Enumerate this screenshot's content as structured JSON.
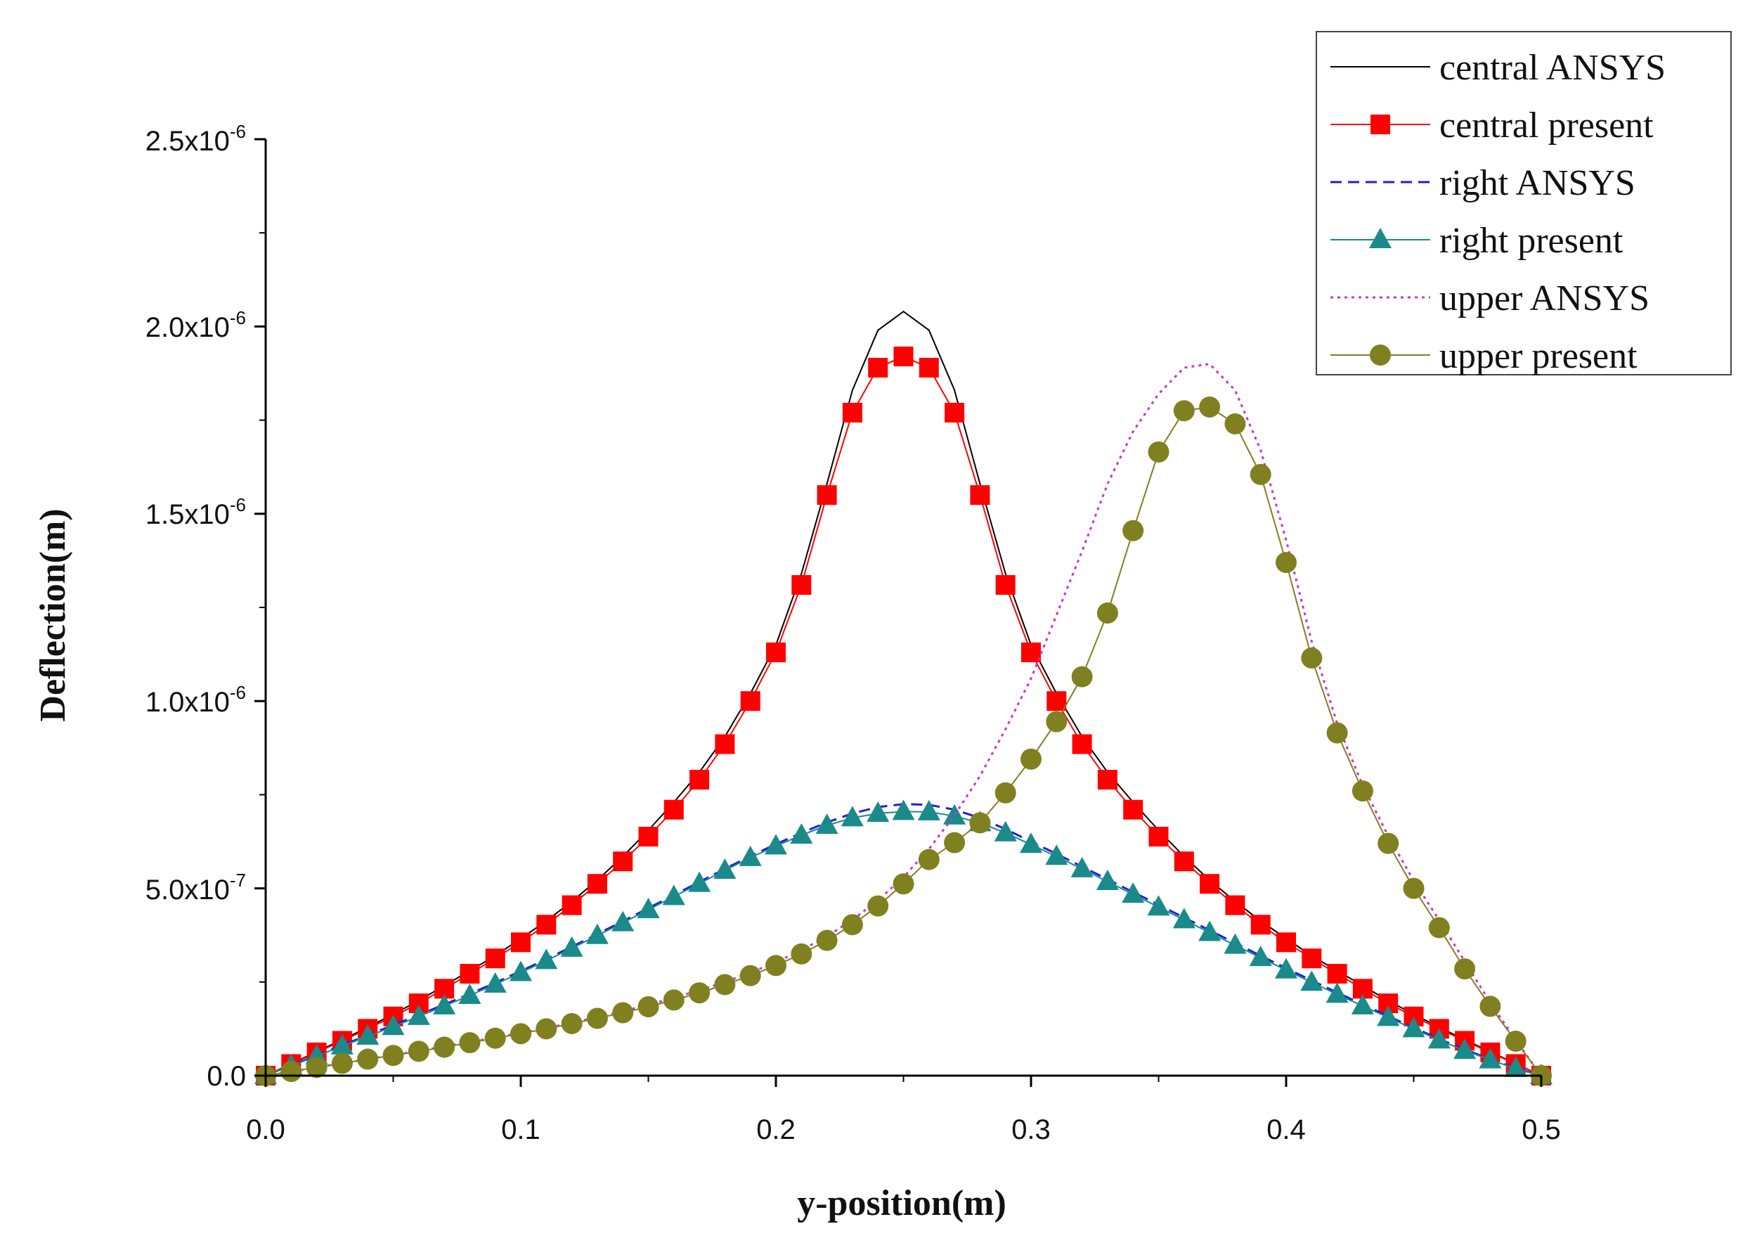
{
  "chart_data": {
    "type": "line",
    "title": "",
    "xlabel": "y-position(m)",
    "ylabel": "Deflection(m)",
    "xlim": [
      0,
      0.5
    ],
    "ylim": [
      0,
      2.5e-06
    ],
    "x_ticks": [
      0.0,
      0.1,
      0.2,
      0.3,
      0.4,
      0.5
    ],
    "x_tick_labels": [
      "0.0",
      "0.1",
      "0.2",
      "0.3",
      "0.4",
      "0.5"
    ],
    "y_ticks": [
      0,
      5e-07,
      1e-06,
      1.5e-06,
      2e-06,
      2.5e-06
    ],
    "y_tick_labels": [
      {
        "mantissa": "0.0",
        "exponent": ""
      },
      {
        "mantissa": "5.0x10",
        "exponent": "-7"
      },
      {
        "mantissa": "1.0x10",
        "exponent": "-6"
      },
      {
        "mantissa": "1.5x10",
        "exponent": "-6"
      },
      {
        "mantissa": "2.0x10",
        "exponent": "-6"
      },
      {
        "mantissa": "2.5x10",
        "exponent": "-6"
      }
    ],
    "grid": false,
    "legend_position": "top-right",
    "x": [
      0,
      0.01,
      0.02,
      0.03,
      0.04,
      0.05,
      0.06,
      0.07,
      0.08,
      0.09,
      0.1,
      0.11,
      0.12,
      0.13,
      0.14,
      0.15,
      0.16,
      0.17,
      0.18,
      0.19,
      0.2,
      0.21,
      0.22,
      0.23,
      0.24,
      0.25,
      0.26,
      0.27,
      0.28,
      0.29,
      0.3,
      0.31,
      0.32,
      0.33,
      0.34,
      0.35,
      0.36,
      0.37,
      0.38,
      0.39,
      0.4,
      0.41,
      0.42,
      0.43,
      0.44,
      0.45,
      0.46,
      0.47,
      0.48,
      0.49,
      0.5
    ],
    "series": [
      {
        "name": "central ANSYS",
        "color": "#000000",
        "style": "solid",
        "marker": "none",
        "values": [
          0,
          3.2e-08,
          6.4e-08,
          9.6e-08,
          1.29e-07,
          1.64e-07,
          2e-07,
          2.4e-07,
          2.8e-07,
          3.2e-07,
          3.66e-07,
          4.13e-07,
          4.65e-07,
          5.22e-07,
          5.85e-07,
          6.55e-07,
          7.3e-07,
          8.1e-07,
          9.05e-07,
          1.02e-06,
          1.15e-06,
          1.34e-06,
          1.58e-06,
          1.83e-06,
          1.99e-06,
          2.04e-06,
          1.99e-06,
          1.83e-06,
          1.58e-06,
          1.34e-06,
          1.15e-06,
          1.02e-06,
          9.05e-07,
          8.1e-07,
          7.3e-07,
          6.55e-07,
          5.85e-07,
          5.22e-07,
          4.65e-07,
          4.13e-07,
          3.66e-07,
          3.2e-07,
          2.8e-07,
          2.4e-07,
          2e-07,
          1.64e-07,
          1.29e-07,
          9.6e-08,
          6.4e-08,
          3.2e-08,
          0
        ]
      },
      {
        "name": "central present",
        "color": "#ff0000",
        "style": "solid",
        "marker": "square",
        "values": [
          0,
          3.1e-08,
          6.2e-08,
          9.3e-08,
          1.25e-07,
          1.58e-07,
          1.93e-07,
          2.32e-07,
          2.72e-07,
          3.13e-07,
          3.56e-07,
          4.03e-07,
          4.55e-07,
          5.12e-07,
          5.72e-07,
          6.38e-07,
          7.1e-07,
          7.9e-07,
          8.85e-07,
          1e-06,
          1.13e-06,
          1.31e-06,
          1.55e-06,
          1.77e-06,
          1.89e-06,
          1.92e-06,
          1.89e-06,
          1.77e-06,
          1.55e-06,
          1.31e-06,
          1.13e-06,
          1e-06,
          8.85e-07,
          7.9e-07,
          7.1e-07,
          6.38e-07,
          5.72e-07,
          5.12e-07,
          4.55e-07,
          4.03e-07,
          3.56e-07,
          3.13e-07,
          2.72e-07,
          2.32e-07,
          1.93e-07,
          1.58e-07,
          1.25e-07,
          9.3e-08,
          6.2e-08,
          3.1e-08,
          0
        ]
      },
      {
        "name": "right ANSYS",
        "color": "#1f1fe0",
        "style": "dashed",
        "marker": "none",
        "values": [
          0,
          2.7e-08,
          5.4e-08,
          8.1e-08,
          1.08e-07,
          1.35e-07,
          1.62e-07,
          1.9e-07,
          2.18e-07,
          2.48e-07,
          2.79e-07,
          3.11e-07,
          3.44e-07,
          3.78e-07,
          4.12e-07,
          4.47e-07,
          4.82e-07,
          5.17e-07,
          5.52e-07,
          5.86e-07,
          6.18e-07,
          6.48e-07,
          6.76e-07,
          7e-07,
          7.17e-07,
          7.25e-07,
          7.23e-07,
          7.1e-07,
          6.88e-07,
          6.58e-07,
          6.25e-07,
          5.92e-07,
          5.58e-07,
          5.24e-07,
          4.9e-07,
          4.56e-07,
          4.22e-07,
          3.88e-07,
          3.54e-07,
          3.2e-07,
          2.87e-07,
          2.54e-07,
          2.22e-07,
          1.9e-07,
          1.59e-07,
          1.28e-07,
          9.8e-08,
          7e-08,
          4.4e-08,
          2e-08,
          0
        ]
      },
      {
        "name": "right present",
        "color": "#1a8a8a",
        "style": "solid",
        "marker": "triangle",
        "values": [
          0,
          2.6e-08,
          5.2e-08,
          7.9e-08,
          1.05e-07,
          1.31e-07,
          1.58e-07,
          1.86e-07,
          2.14e-07,
          2.44e-07,
          2.75e-07,
          3.07e-07,
          3.4e-07,
          3.74e-07,
          4.08e-07,
          4.43e-07,
          4.78e-07,
          5.13e-07,
          5.48e-07,
          5.82e-07,
          6.13e-07,
          6.42e-07,
          6.68e-07,
          6.88e-07,
          7e-07,
          7.05e-07,
          7.04e-07,
          6.93e-07,
          6.75e-07,
          6.48e-07,
          6.17e-07,
          5.85e-07,
          5.52e-07,
          5.18e-07,
          4.84e-07,
          4.5e-07,
          4.16e-07,
          3.82e-07,
          3.48e-07,
          3.15e-07,
          2.82e-07,
          2.49e-07,
          2.17e-07,
          1.86e-07,
          1.55e-07,
          1.25e-07,
          9.5e-08,
          6.7e-08,
          4.2e-08,
          1.9e-08,
          0
        ]
      },
      {
        "name": "upper ANSYS",
        "color": "#cc33cc",
        "style": "dotted",
        "marker": "none",
        "values": [
          0,
          1.1e-08,
          2.2e-08,
          3.3e-08,
          4.4e-08,
          5.5e-08,
          6.6e-08,
          7.8e-08,
          9e-08,
          1.02e-07,
          1.14e-07,
          1.27e-07,
          1.41e-07,
          1.56e-07,
          1.72e-07,
          1.89e-07,
          2.08e-07,
          2.28e-07,
          2.5e-07,
          2.75e-07,
          3.03e-07,
          3.35e-07,
          3.72e-07,
          4.16e-07,
          4.68e-07,
          5.3e-07,
          6.05e-07,
          6.95e-07,
          8e-07,
          9.25e-07,
          1.06e-06,
          1.23e-06,
          1.4e-06,
          1.58e-06,
          1.72e-06,
          1.82e-06,
          1.89e-06,
          1.9e-06,
          1.83e-06,
          1.67e-06,
          1.43e-06,
          1.16e-06,
          9.4e-07,
          7.75e-07,
          6.4e-07,
          5.2e-07,
          4.15e-07,
          3.05e-07,
          1.95e-07,
          9.5e-08,
          0
        ]
      },
      {
        "name": "upper present",
        "color": "#808020",
        "style": "solid",
        "marker": "circle",
        "values": [
          0,
          1.1e-08,
          2.2e-08,
          3.3e-08,
          4.4e-08,
          5.4e-08,
          6.5e-08,
          7.6e-08,
          8.8e-08,
          1e-07,
          1.12e-07,
          1.25e-07,
          1.39e-07,
          1.53e-07,
          1.68e-07,
          1.84e-07,
          2.02e-07,
          2.21e-07,
          2.43e-07,
          2.67e-07,
          2.94e-07,
          3.25e-07,
          3.61e-07,
          4.03e-07,
          4.53e-07,
          5.12e-07,
          5.77e-07,
          6.22e-07,
          6.75e-07,
          7.55e-07,
          8.45e-07,
          9.45e-07,
          1.065e-06,
          1.235e-06,
          1.455e-06,
          1.665e-06,
          1.775e-06,
          1.785e-06,
          1.74e-06,
          1.605e-06,
          1.37e-06,
          1.115e-06,
          9.15e-07,
          7.6e-07,
          6.2e-07,
          5e-07,
          3.95e-07,
          2.85e-07,
          1.85e-07,
          9.2e-08,
          0
        ]
      }
    ]
  }
}
